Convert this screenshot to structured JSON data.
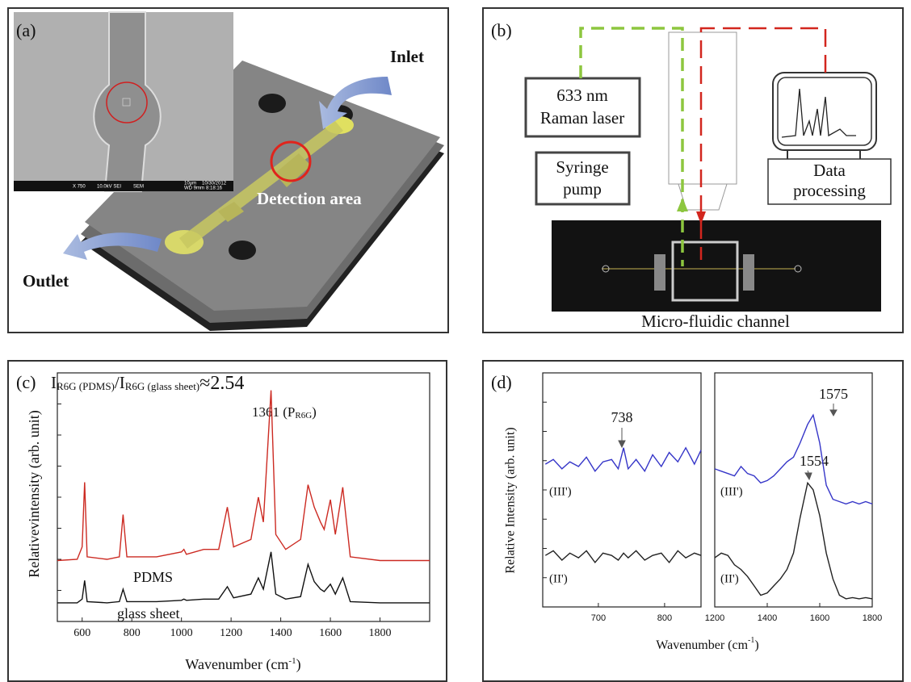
{
  "panels": {
    "a": {
      "label": "(a)",
      "inlet": "Inlet",
      "detection": "Detection area",
      "outlet": "Outlet",
      "sem_info": [
        "X 750",
        "10.0kV SEI",
        "SEM",
        "10μm",
        "10/30/2012",
        "WD 9mm",
        "8:18:16"
      ]
    },
    "b": {
      "label": "(b)",
      "laser_1": "633 nm",
      "laser_2": "Raman laser",
      "pump_1": "Syringe",
      "pump_2": "pump",
      "data_1": "Data",
      "data_2": "processing",
      "channel": "Micro-fluidic channel"
    },
    "c": {
      "label": "(c)"
    },
    "d": {
      "label": "(d)"
    }
  },
  "chart_data": [
    {
      "type": "line",
      "ratio_parts": [
        "I",
        "R6G (PDMS)",
        "/I",
        "R6G (glass sheet)",
        "≈2.54"
      ],
      "peak_parts": [
        "1361 (P",
        "R6G",
        ")"
      ],
      "ylabel": "Relativevintensity (arb. unit)",
      "xlabel": "Wavenumber (cm",
      "xlabel_sup": "-1",
      "xlabel_end": ")",
      "x": [
        500,
        580,
        600,
        610,
        620,
        700,
        750,
        765,
        780,
        900,
        1000,
        1010,
        1020,
        1090,
        1150,
        1185,
        1210,
        1280,
        1310,
        1330,
        1361,
        1380,
        1420,
        1480,
        1510,
        1535,
        1560,
        1575,
        1600,
        1620,
        1650,
        1680,
        1800,
        2000
      ],
      "series": [
        {
          "name": "PDMS",
          "color": "#cc2a22",
          "values": [
            2.45,
            2.5,
            3.0,
            5.6,
            2.6,
            2.5,
            2.6,
            4.3,
            2.6,
            2.6,
            2.8,
            2.9,
            2.7,
            2.9,
            2.9,
            4.6,
            3.0,
            3.3,
            5.0,
            4.0,
            9.3,
            3.5,
            2.9,
            3.3,
            5.5,
            4.6,
            4.0,
            3.7,
            4.9,
            3.5,
            5.4,
            2.6,
            2.45,
            2.45
          ]
        },
        {
          "name": "glass sheet",
          "color": "#111111",
          "values": [
            0.75,
            0.75,
            0.9,
            1.65,
            0.8,
            0.75,
            0.8,
            1.3,
            0.8,
            0.8,
            0.85,
            0.9,
            0.85,
            0.9,
            0.9,
            1.4,
            0.95,
            1.1,
            1.75,
            1.3,
            2.8,
            1.1,
            0.9,
            1.0,
            2.3,
            1.6,
            1.3,
            1.2,
            1.5,
            1.1,
            1.75,
            0.8,
            0.75,
            0.75
          ]
        }
      ],
      "xlim": [
        500,
        2000
      ],
      "xticks": [
        600,
        800,
        1000,
        1200,
        1400,
        1600,
        1800
      ],
      "ylim": [
        0,
        10
      ]
    },
    {
      "type": "line",
      "ylabel": "Relative Intensity (arb. unit)",
      "xlabel": "Wavenumber (cm",
      "xlabel_sup": "-1",
      "xlabel_end": ")",
      "peak": "738",
      "x": [
        620,
        632,
        645,
        657,
        670,
        682,
        695,
        707,
        720,
        730,
        738,
        745,
        757,
        770,
        782,
        795,
        807,
        820,
        832,
        845,
        855
      ],
      "series": [
        {
          "name": "(III')",
          "color": "#3535c8",
          "values": [
            6.1,
            6.3,
            5.9,
            6.2,
            6.0,
            6.4,
            5.8,
            6.2,
            6.3,
            5.9,
            6.8,
            5.9,
            6.3,
            5.8,
            6.5,
            6.0,
            6.6,
            6.2,
            6.8,
            6.1,
            6.7
          ]
        },
        {
          "name": "(II')",
          "color": "#222222",
          "values": [
            2.2,
            2.4,
            2.0,
            2.3,
            2.1,
            2.4,
            1.9,
            2.3,
            2.2,
            2.0,
            2.3,
            2.1,
            2.4,
            2.0,
            2.2,
            2.3,
            1.9,
            2.4,
            2.1,
            2.3,
            2.2
          ]
        }
      ],
      "xlim": [
        616,
        855
      ],
      "xticks": [
        700,
        800
      ],
      "ylim": [
        0,
        10
      ]
    },
    {
      "type": "line",
      "peaks": [
        "1575",
        "1554"
      ],
      "x": [
        1200,
        1225,
        1250,
        1275,
        1300,
        1325,
        1350,
        1375,
        1400,
        1425,
        1450,
        1475,
        1500,
        1525,
        1554,
        1575,
        1600,
        1625,
        1650,
        1675,
        1700,
        1725,
        1750,
        1775,
        1800
      ],
      "series": [
        {
          "name": "(III')",
          "color": "#3535c8",
          "values": [
            5.9,
            5.8,
            5.7,
            5.6,
            6.0,
            5.7,
            5.6,
            5.3,
            5.4,
            5.6,
            5.9,
            6.2,
            6.4,
            7.0,
            7.8,
            8.2,
            7.0,
            5.2,
            4.6,
            4.5,
            4.4,
            4.5,
            4.4,
            4.5,
            4.4
          ]
        },
        {
          "name": "(II')",
          "color": "#222222",
          "values": [
            2.1,
            2.3,
            2.2,
            1.8,
            1.6,
            1.3,
            0.9,
            0.5,
            0.6,
            0.9,
            1.2,
            1.6,
            2.3,
            3.8,
            5.3,
            5.0,
            3.9,
            2.3,
            1.2,
            0.5,
            0.35,
            0.4,
            0.35,
            0.4,
            0.35
          ]
        }
      ],
      "xlim": [
        1200,
        1800
      ],
      "xticks": [
        1200,
        1400,
        1600,
        1800
      ],
      "ylim": [
        0,
        10
      ]
    }
  ]
}
